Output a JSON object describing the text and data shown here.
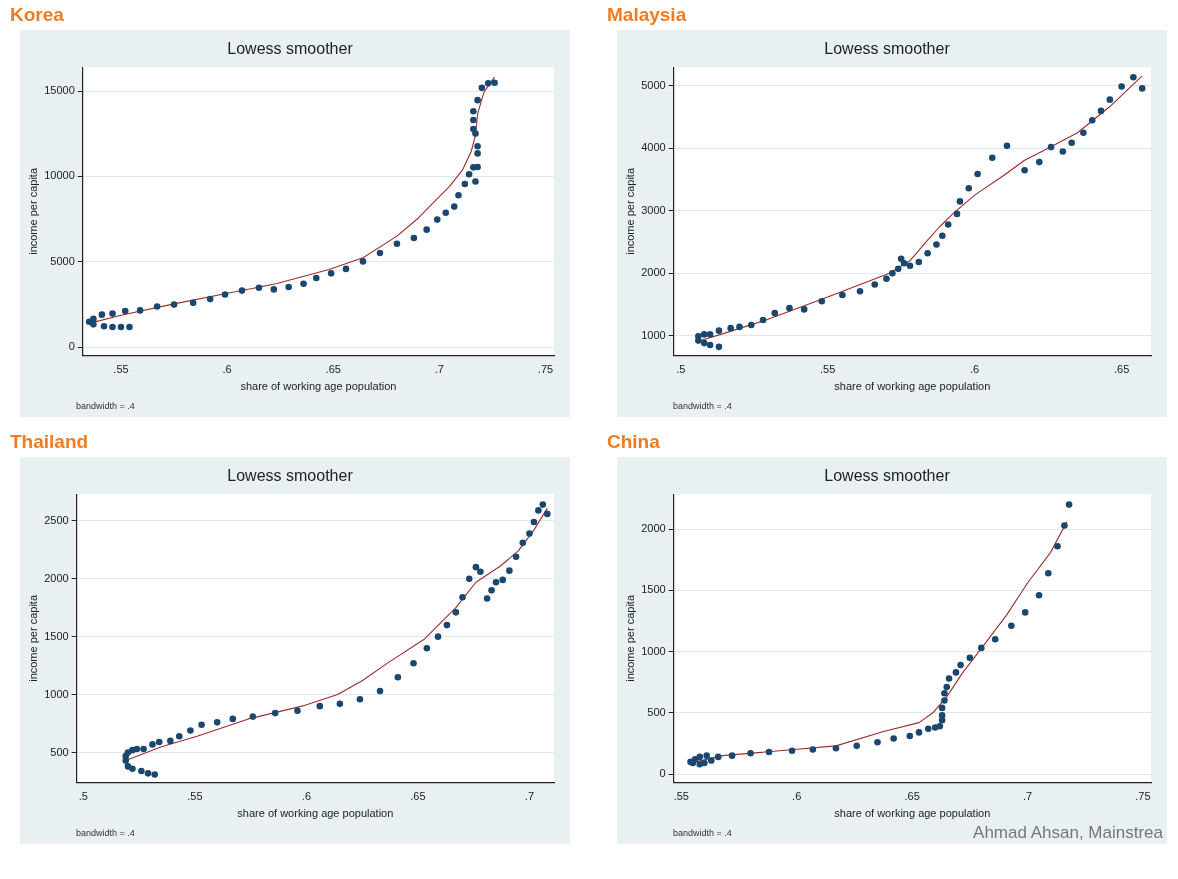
{
  "chart_data": [
    {
      "type": "scatter",
      "title": "Korea",
      "subtitle": "Lowess smoother",
      "xlabel": "share of working age population",
      "ylabel": "income per capita",
      "annotations": [
        "bandwidth = .4"
      ],
      "marker": "circle",
      "grid": "y",
      "legend": false,
      "xlim": [
        0.532,
        0.754
      ],
      "ylim": [
        -500,
        16400
      ],
      "xticks": [
        {
          "value": 0.55,
          "label": ".55"
        },
        {
          "value": 0.6,
          "label": ".6"
        },
        {
          "value": 0.65,
          "label": ".65"
        },
        {
          "value": 0.7,
          "label": ".7"
        },
        {
          "value": 0.75,
          "label": ".75"
        }
      ],
      "yticks": [
        0,
        5000,
        10000,
        15000
      ],
      "series": [
        {
          "color": "#1a476f",
          "x": [
            0.535,
            0.537,
            0.542,
            0.546,
            0.55,
            0.554,
            0.537,
            0.541,
            0.546,
            0.552,
            0.559,
            0.567,
            0.575,
            0.584,
            0.592,
            0.599,
            0.607,
            0.615,
            0.622,
            0.629,
            0.636,
            0.642,
            0.649,
            0.656,
            0.664,
            0.672,
            0.68,
            0.688,
            0.694,
            0.699,
            0.703,
            0.707,
            0.709,
            0.712,
            0.714,
            0.716,
            0.718,
            0.717,
            0.718,
            0.718,
            0.717,
            0.716,
            0.716,
            0.716,
            0.718,
            0.72,
            0.723,
            0.726
          ],
          "values": [
            1480,
            1330,
            1220,
            1180,
            1180,
            1180,
            1650,
            1900,
            1960,
            2110,
            2150,
            2380,
            2490,
            2590,
            2810,
            3080,
            3310,
            3480,
            3380,
            3520,
            3710,
            4050,
            4320,
            4580,
            5020,
            5510,
            6050,
            6390,
            6880,
            7470,
            7870,
            8230,
            8900,
            9560,
            10130,
            10530,
            10550,
            9700,
            11350,
            11770,
            12510,
            12780,
            13310,
            13820,
            14470,
            15190,
            15460,
            15490
          ]
        },
        {
          "type": "line",
          "marker": "none",
          "color": "#9b2d2d",
          "x": [
            0.535,
            0.55,
            0.575,
            0.599,
            0.623,
            0.648,
            0.664,
            0.68,
            0.69,
            0.7,
            0.705,
            0.711,
            0.715,
            0.717,
            0.718,
            0.721,
            0.726
          ],
          "values": [
            1390,
            1860,
            2530,
            3120,
            3710,
            4540,
            5230,
            6500,
            7550,
            8820,
            9450,
            10400,
            11460,
            12410,
            13670,
            14940,
            15820
          ]
        }
      ]
    },
    {
      "type": "scatter",
      "title": "Malaysia",
      "subtitle": "Lowess smoother",
      "xlabel": "share of working age population",
      "ylabel": "income per capita",
      "annotations": [
        "bandwidth = .4"
      ],
      "marker": "circle",
      "grid": "y",
      "legend": false,
      "xlim": [
        0.4976,
        0.66
      ],
      "ylim": [
        680,
        5300
      ],
      "xticks": [
        {
          "value": 0.5,
          "label": ".5"
        },
        {
          "value": 0.55,
          "label": ".55"
        },
        {
          "value": 0.6,
          "label": ".6"
        },
        {
          "value": 0.65,
          "label": ".65"
        }
      ],
      "yticks": [
        1000,
        2000,
        3000,
        4000,
        5000
      ],
      "series": [
        {
          "color": "#1a476f",
          "x": [
            0.506,
            0.508,
            0.51,
            0.513,
            0.506,
            0.508,
            0.51,
            0.513,
            0.517,
            0.52,
            0.524,
            0.528,
            0.532,
            0.537,
            0.542,
            0.548,
            0.555,
            0.561,
            0.566,
            0.57,
            0.572,
            0.574,
            0.575,
            0.576,
            0.578,
            0.581,
            0.584,
            0.587,
            0.589,
            0.591,
            0.594,
            0.595,
            0.598,
            0.601,
            0.606,
            0.611,
            0.617,
            0.622,
            0.626,
            0.63,
            0.633,
            0.637,
            0.64,
            0.643,
            0.646,
            0.65,
            0.654,
            0.657
          ],
          "values": [
            920,
            880,
            850,
            820,
            990,
            1020,
            1020,
            1080,
            1120,
            1140,
            1170,
            1250,
            1360,
            1440,
            1420,
            1550,
            1650,
            1710,
            1820,
            1910,
            2000,
            2070,
            2230,
            2160,
            2120,
            2180,
            2320,
            2460,
            2600,
            2780,
            2950,
            3150,
            3360,
            3590,
            3850,
            4040,
            3650,
            3780,
            4020,
            3950,
            4090,
            4250,
            4450,
            4600,
            4780,
            4990,
            5140,
            4960
          ]
        },
        {
          "type": "line",
          "marker": "none",
          "color": "#9b2d2d",
          "x": [
            0.506,
            0.515,
            0.529,
            0.55,
            0.571,
            0.578,
            0.584,
            0.588,
            0.593,
            0.6,
            0.61,
            0.617,
            0.625,
            0.635,
            0.646,
            0.657
          ],
          "values": [
            910,
            1040,
            1250,
            1620,
            2000,
            2200,
            2530,
            2740,
            2970,
            3250,
            3570,
            3810,
            4000,
            4250,
            4670,
            5160
          ]
        }
      ]
    },
    {
      "type": "scatter",
      "title": "Thailand",
      "subtitle": "Lowess smoother",
      "xlabel": "share of working age population",
      "ylabel": "income per capita",
      "annotations": [
        "bandwidth = .4"
      ],
      "marker": "circle",
      "grid": "y",
      "legend": false,
      "xlim": [
        0.497,
        0.711
      ],
      "ylim": [
        240,
        2730
      ],
      "xticks": [
        {
          "value": 0.5,
          "label": ".5"
        },
        {
          "value": 0.55,
          "label": ".55"
        },
        {
          "value": 0.6,
          "label": ".6"
        },
        {
          "value": 0.65,
          "label": ".65"
        },
        {
          "value": 0.7,
          "label": ".7"
        }
      ],
      "yticks": [
        500,
        1000,
        1500,
        2000,
        2500
      ],
      "series": [
        {
          "color": "#1a476f",
          "x": [
            0.519,
            0.52,
            0.522,
            0.526,
            0.529,
            0.532,
            0.519,
            0.52,
            0.522,
            0.524,
            0.527,
            0.531,
            0.534,
            0.539,
            0.543,
            0.548,
            0.553,
            0.56,
            0.567,
            0.576,
            0.586,
            0.596,
            0.606,
            0.615,
            0.624,
            0.633,
            0.641,
            0.648,
            0.654,
            0.659,
            0.663,
            0.667,
            0.67,
            0.673,
            0.676,
            0.678,
            0.681,
            0.683,
            0.685,
            0.688,
            0.691,
            0.694,
            0.697,
            0.7,
            0.702,
            0.704,
            0.706,
            0.708
          ],
          "values": [
            430,
            380,
            360,
            340,
            320,
            310,
            470,
            500,
            520,
            530,
            530,
            570,
            590,
            600,
            640,
            690,
            740,
            760,
            790,
            810,
            840,
            860,
            900,
            920,
            960,
            1030,
            1150,
            1270,
            1400,
            1500,
            1600,
            1710,
            1840,
            2000,
            2100,
            2060,
            1830,
            1900,
            1970,
            1990,
            2070,
            2190,
            2310,
            2390,
            2490,
            2590,
            2640,
            2560
          ]
        },
        {
          "type": "line",
          "marker": "none",
          "color": "#9b2d2d",
          "x": [
            0.519,
            0.535,
            0.551,
            0.574,
            0.598,
            0.614,
            0.625,
            0.637,
            0.653,
            0.667,
            0.676,
            0.687,
            0.695,
            0.702,
            0.708
          ],
          "values": [
            430,
            550,
            640,
            790,
            900,
            1000,
            1120,
            1280,
            1480,
            1750,
            1970,
            2110,
            2240,
            2420,
            2610
          ]
        }
      ]
    },
    {
      "type": "scatter",
      "title": "China",
      "subtitle": "Lowess smoother",
      "xlabel": "share of working age population",
      "ylabel": "income per capita",
      "annotations": [
        "bandwidth = .4",
        "Ahmad Ahsan, Mainstrea"
      ],
      "marker": "circle",
      "grid": "y",
      "legend": false,
      "xlim": [
        0.5467,
        0.7535
      ],
      "ylim": [
        -70,
        2285
      ],
      "xticks": [
        {
          "value": 0.55,
          "label": ".55"
        },
        {
          "value": 0.6,
          "label": ".6"
        },
        {
          "value": 0.65,
          "label": ".65"
        },
        {
          "value": 0.7,
          "label": ".7"
        },
        {
          "value": 0.75,
          "label": ".75"
        }
      ],
      "yticks": [
        0,
        500,
        1000,
        1500,
        2000
      ],
      "series": [
        {
          "color": "#1a476f",
          "x": [
            0.554,
            0.555,
            0.556,
            0.558,
            0.558,
            0.56,
            0.561,
            0.563,
            0.566,
            0.572,
            0.58,
            0.588,
            0.598,
            0.607,
            0.617,
            0.626,
            0.635,
            0.642,
            0.649,
            0.653,
            0.657,
            0.66,
            0.662,
            0.663,
            0.663,
            0.663,
            0.664,
            0.664,
            0.665,
            0.666,
            0.669,
            0.671,
            0.675,
            0.68,
            0.686,
            0.693,
            0.699,
            0.705,
            0.709,
            0.713,
            0.716,
            0.718
          ],
          "values": [
            100,
            90,
            120,
            80,
            140,
            90,
            150,
            110,
            140,
            150,
            170,
            180,
            190,
            200,
            210,
            230,
            260,
            290,
            310,
            340,
            370,
            380,
            390,
            440,
            480,
            540,
            600,
            660,
            710,
            780,
            830,
            890,
            950,
            1030,
            1100,
            1210,
            1320,
            1460,
            1640,
            1860,
            2030,
            2200
          ]
        },
        {
          "type": "line",
          "marker": "none",
          "color": "#9b2d2d",
          "x": [
            0.554,
            0.568,
            0.599,
            0.617,
            0.638,
            0.653,
            0.659,
            0.665,
            0.672,
            0.681,
            0.691,
            0.7,
            0.71,
            0.717
          ],
          "values": [
            90,
            150,
            200,
            230,
            350,
            420,
            500,
            630,
            830,
            1050,
            1300,
            1560,
            1810,
            2060
          ]
        }
      ]
    }
  ]
}
